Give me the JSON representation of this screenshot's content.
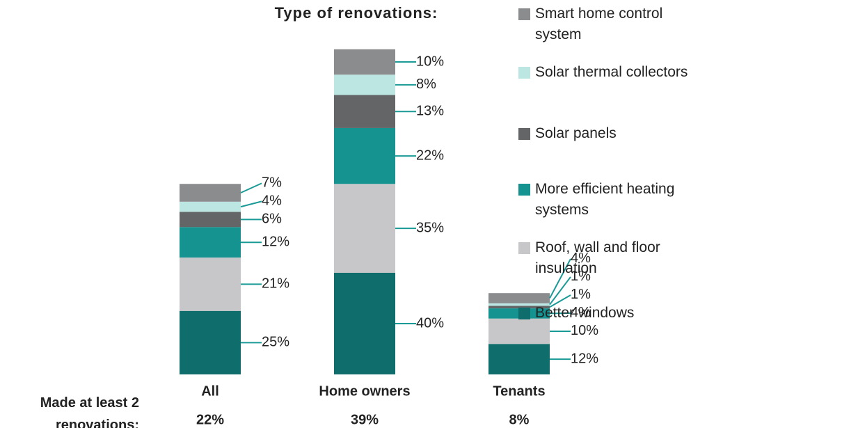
{
  "chart_data": {
    "type": "stacked_bar",
    "title": "Type of renovations:",
    "categories": [
      "All",
      "Home owners",
      "Tenants"
    ],
    "series": [
      {
        "name": "Better windows",
        "color": "#0f6e6b",
        "values": [
          25,
          40,
          12
        ],
        "value_labels": [
          "25%",
          "40%",
          "12%"
        ]
      },
      {
        "name": "Roof, wall and floor insulation",
        "color": "#c7c7c9",
        "values": [
          21,
          35,
          10
        ],
        "value_labels": [
          "21%",
          "35%",
          "10%"
        ]
      },
      {
        "name": "More efficient heating systems",
        "color": "#149390",
        "values": [
          12,
          22,
          4
        ],
        "value_labels": [
          "12%",
          "22%",
          "4%"
        ]
      },
      {
        "name": "Solar panels",
        "color": "#646567",
        "values": [
          6,
          13,
          1
        ],
        "value_labels": [
          "6%",
          "13%",
          "1%"
        ]
      },
      {
        "name": "Solar thermal collectors",
        "color": "#bce6e2",
        "values": [
          4,
          8,
          1
        ],
        "value_labels": [
          "4%",
          "8%",
          "1%"
        ]
      },
      {
        "name": "Smart home control system",
        "color": "#8a8c8e",
        "values": [
          7,
          10,
          4
        ],
        "value_labels": [
          "7%",
          "10%",
          "4%"
        ]
      }
    ],
    "footer": {
      "label": "Made at least 2 renovations:",
      "values": [
        22,
        39,
        8
      ],
      "value_labels": [
        "22%",
        "39%",
        "8%"
      ]
    }
  }
}
